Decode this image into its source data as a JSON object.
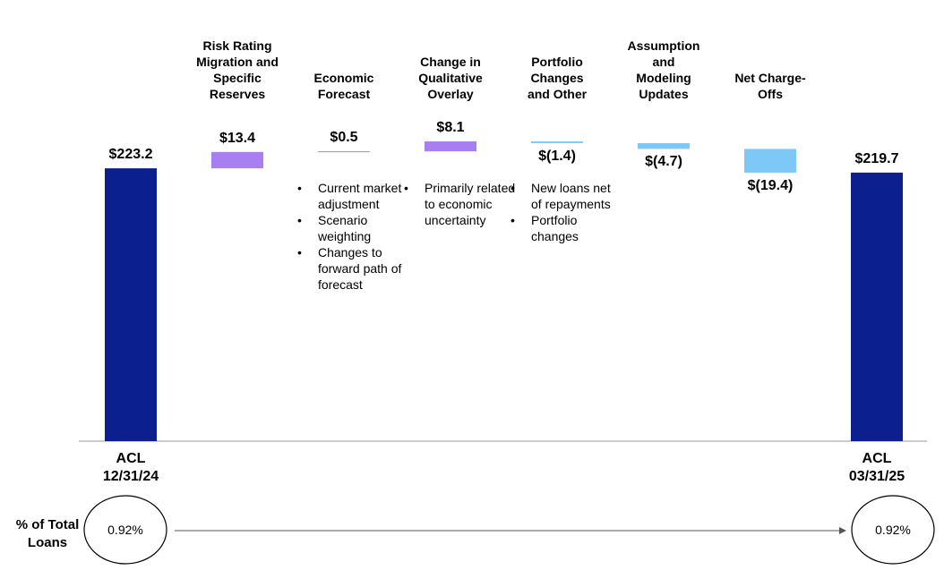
{
  "chart_data": {
    "type": "waterfall",
    "categories": [
      "ACL 12/31/24",
      "Risk Rating Migration and Specific Reserves",
      "Economic Forecast",
      "Change in Qualitative Overlay",
      "Portfolio Changes and Other",
      "Assumption and Modeling Updates",
      "Net Charge-Offs",
      "ACL 03/31/25"
    ],
    "values": [
      223.2,
      13.4,
      0.5,
      8.1,
      -1.4,
      -4.7,
      -19.4,
      219.7
    ],
    "value_labels": [
      "$223.2",
      "$13.4",
      "$0.5",
      "$8.1",
      "$(1.4)",
      "$(4.7)",
      "$(19.4)",
      "$219.7"
    ],
    "colors": {
      "total": "#0b1f8e",
      "increase": "#a87ff0",
      "decrease": "#7ec8f7"
    },
    "notes": [
      [],
      [],
      [
        "Current market adjustment",
        "Scenario weighting",
        "Changes to forward path of forecast"
      ],
      [
        "Primarily related to economic uncertainty"
      ],
      [
        "New loans net of repayments",
        "Portfolio changes"
      ],
      [],
      [],
      []
    ]
  },
  "footer": {
    "label": "% of Total Loans",
    "start": "0.92%",
    "end": "0.92%"
  }
}
